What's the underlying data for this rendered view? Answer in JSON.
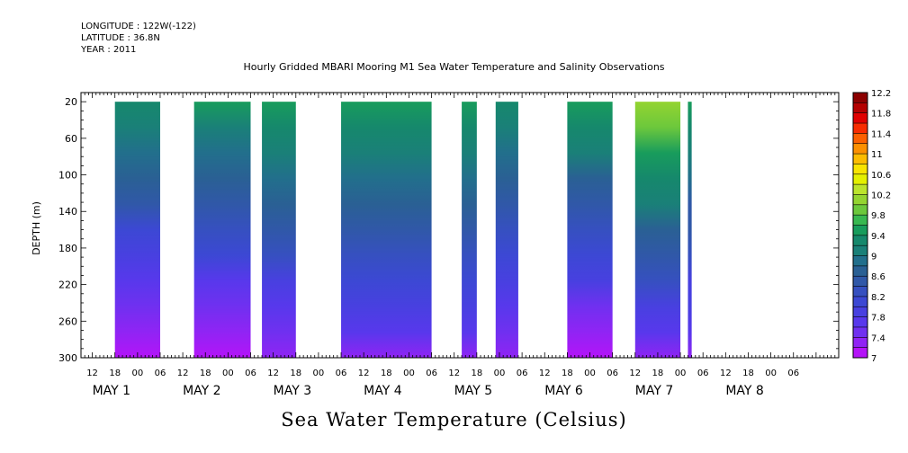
{
  "header": {
    "longitude": "LONGITUDE : 122W(-122)",
    "latitude": "LATITUDE : 36.8N",
    "year": "YEAR : 2011"
  },
  "chart_data": {
    "type": "heatmap",
    "title": "Hourly Gridded MBARI Mooring M1 Sea Water Temperature and Salinity Observations",
    "footer_title": "Sea Water Temperature (Celsius)",
    "ylabel": "DEPTH (m)",
    "y_ticks": [
      20,
      60,
      100,
      140,
      180,
      220,
      260,
      300
    ],
    "y_range": [
      300,
      10
    ],
    "x_start": "2011-04-30T09:00",
    "x_end": "2011-05-08T18:00",
    "x_hour_ticks": [
      "12",
      "18",
      "00",
      "06",
      "12",
      "18",
      "00",
      "06",
      "12",
      "18",
      "00",
      "06",
      "12",
      "18",
      "00",
      "06",
      "12",
      "18",
      "00",
      "06",
      "12",
      "18",
      "00",
      "06",
      "12",
      "18",
      "00",
      "06",
      "12",
      "18",
      "00",
      "06"
    ],
    "day_labels": [
      "MAY 1",
      "MAY 2",
      "MAY 3",
      "MAY 4",
      "MAY 5",
      "MAY 6",
      "MAY 7",
      "MAY 8"
    ],
    "colorbar": {
      "labels": [
        "12.2",
        "11.8",
        "11.4",
        "11",
        "10.6",
        "10.2",
        "9.8",
        "9.4",
        "9",
        "8.6",
        "8.2",
        "7.8",
        "7.4",
        "7"
      ],
      "colors": [
        "#8c0000",
        "#b40000",
        "#e00000",
        "#f82c00",
        "#fc6000",
        "#fc9000",
        "#fcbc00",
        "#f8e400",
        "#e4f000",
        "#bce42c",
        "#94d430",
        "#6cc83c",
        "#38b850",
        "#189c5c",
        "#16886c",
        "#1a8078",
        "#226f8c",
        "#2a6094",
        "#3058a8",
        "#3650c0",
        "#3c48d4",
        "#4840e0",
        "#5838ec",
        "#7030f0",
        "#9024f4",
        "#b414f8"
      ],
      "range": [
        7.0,
        12.2
      ]
    },
    "data_blocks": [
      {
        "start": "2011-04-30T18:00",
        "end": "2011-05-01T06:00",
        "surface": 9.3,
        "bottom": 7.1
      },
      {
        "start": "2011-05-01T15:00",
        "end": "2011-05-02T06:00",
        "surface": 9.4,
        "bottom": 7.1
      },
      {
        "start": "2011-05-02T09:00",
        "end": "2011-05-02T18:00",
        "surface": 9.6,
        "bottom": 7.3
      },
      {
        "start": "2011-05-03T06:00",
        "end": "2011-05-04T06:00",
        "surface": 9.6,
        "bottom": 7.4
      },
      {
        "start": "2011-05-04T14:00",
        "end": "2011-05-04T18:00",
        "surface": 9.5,
        "bottom": 7.4
      },
      {
        "start": "2011-05-04T23:00",
        "end": "2011-05-05T05:00",
        "surface": 9.3,
        "bottom": 7.4
      },
      {
        "start": "2011-05-05T18:00",
        "end": "2011-05-06T06:00",
        "surface": 9.5,
        "bottom": 7.1
      },
      {
        "start": "2011-05-06T12:00",
        "end": "2011-05-07T00:00",
        "surface": 10.1,
        "bottom": 7.4
      },
      {
        "start": "2011-05-07T02:00",
        "end": "2011-05-07T03:00",
        "surface": 9.4,
        "bottom": 7.4
      }
    ]
  }
}
